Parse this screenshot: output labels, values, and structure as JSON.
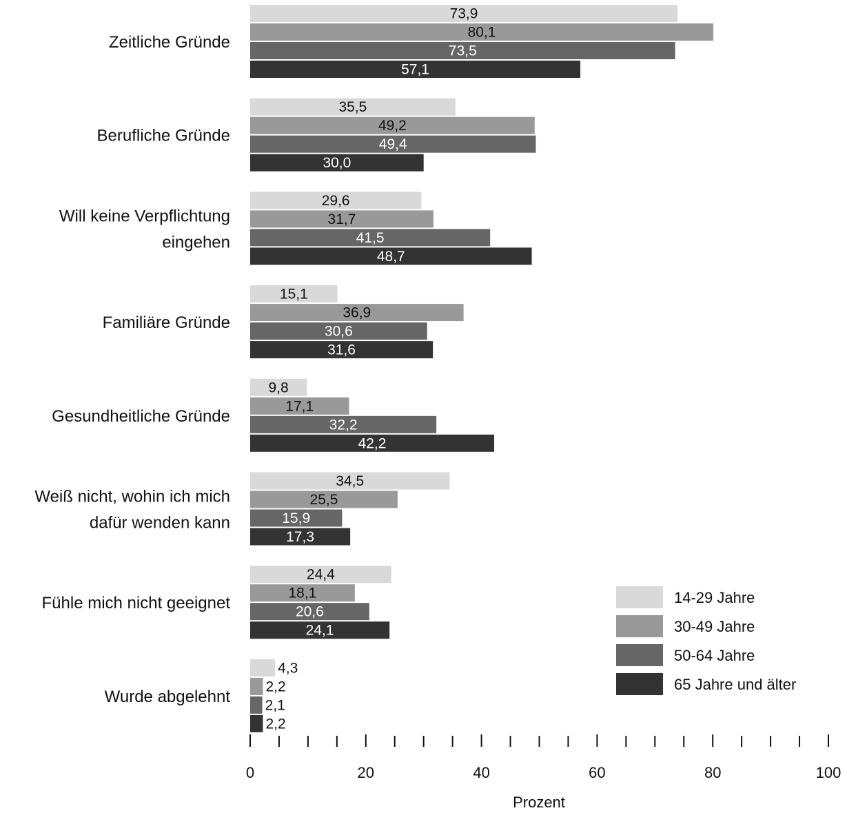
{
  "chart_data": {
    "type": "bar",
    "orientation": "horizontal",
    "categories": [
      [
        "Zeitliche Gründe"
      ],
      [
        "Berufliche Gründe"
      ],
      [
        "Will keine Verpflichtung",
        "eingehen"
      ],
      [
        "Familiäre Gründe"
      ],
      [
        "Gesundheitliche Gründe"
      ],
      [
        "Weiß nicht, wohin ich mich",
        "dafür wenden kann"
      ],
      [
        "Fühle mich nicht geeignet"
      ],
      [
        "Wurde abgelehnt"
      ]
    ],
    "series": [
      {
        "name": "14-29 Jahre",
        "color": "#d9d9d9",
        "label_color": "#111111",
        "values": [
          73.9,
          35.5,
          29.6,
          15.1,
          9.8,
          34.5,
          24.4,
          4.3
        ],
        "labels": [
          "73,9",
          "35,5",
          "29,6",
          "15,1",
          "9,8",
          "34,5",
          "24,4",
          "4,3"
        ]
      },
      {
        "name": "30-49 Jahre",
        "color": "#999999",
        "label_color": "#111111",
        "values": [
          80.1,
          49.2,
          31.7,
          36.9,
          17.1,
          25.5,
          18.1,
          2.2
        ],
        "labels": [
          "80,1",
          "49,2",
          "31,7",
          "36,9",
          "17,1",
          "25,5",
          "18,1",
          "2,2"
        ]
      },
      {
        "name": "50-64 Jahre",
        "color": "#666666",
        "label_color": "#ffffff",
        "values": [
          73.5,
          49.4,
          41.5,
          30.6,
          32.2,
          15.9,
          20.6,
          2.1
        ],
        "labels": [
          "73,5",
          "49,4",
          "41,5",
          "30,6",
          "32,2",
          "15,9",
          "20,6",
          "2,1"
        ]
      },
      {
        "name": "65 Jahre und älter",
        "color": "#333333",
        "label_color": "#ffffff",
        "values": [
          57.1,
          30.0,
          48.7,
          31.6,
          42.2,
          17.3,
          24.1,
          2.2
        ],
        "labels": [
          "57,1",
          "30,0",
          "48,7",
          "31,6",
          "42,2",
          "17,3",
          "24,1",
          "2,2"
        ]
      }
    ],
    "xlabel": "Prozent",
    "xlim": [
      0,
      100
    ],
    "xticks": [
      0,
      20,
      40,
      60,
      80,
      100
    ],
    "xticks_minor_step": 5,
    "grid": false,
    "legend_position": "bottom-right"
  }
}
